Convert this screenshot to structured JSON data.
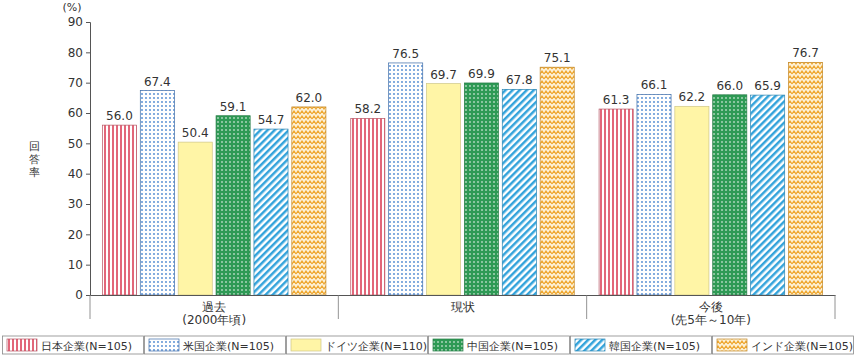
{
  "chart_data": {
    "type": "bar",
    "y_label": "回答率",
    "y_unit": "(%)",
    "categories": [
      "過去\n(2000年頃)",
      "現状",
      "今後\n(先5年～10年)"
    ],
    "series": [
      {
        "name": "日本企業(N=105)",
        "color": "#e2677a",
        "values": [
          56.0,
          58.2,
          61.3
        ],
        "value_labels": [
          "56.0",
          "58.2",
          "61.3"
        ]
      },
      {
        "name": "米国企業(N=105)",
        "color": "#4a86d0",
        "values": [
          67.4,
          76.5,
          66.1
        ],
        "value_labels": [
          "67.4",
          "76.5",
          "66.1"
        ]
      },
      {
        "name": "ドイツ企業(N=110)",
        "color": "#fff5a6",
        "values": [
          50.4,
          69.7,
          62.2
        ],
        "value_labels": [
          "50.4",
          "69.7",
          "62.2"
        ]
      },
      {
        "name": "中国企業(N=105)",
        "color": "#2e9a55",
        "values": [
          59.1,
          69.9,
          66.0
        ],
        "value_labels": [
          "59.1",
          "69.9",
          "66.0"
        ]
      },
      {
        "name": "韓国企業(N=105)",
        "color": "#33a3db",
        "values": [
          54.7,
          67.8,
          65.9
        ],
        "value_labels": [
          "54.7",
          "67.8",
          "65.9"
        ]
      },
      {
        "name": "インド企業(N=105)",
        "color": "#efa62e",
        "values": [
          62.0,
          75.1,
          76.7
        ],
        "value_labels": [
          "62.0",
          "75.1",
          "76.7"
        ]
      }
    ],
    "ylim": [
      0,
      90
    ],
    "yticks": [
      0,
      10,
      20,
      30,
      40,
      50,
      60,
      70,
      80,
      90
    ],
    "grid": false,
    "legend": "bottom",
    "data_labels": true
  }
}
